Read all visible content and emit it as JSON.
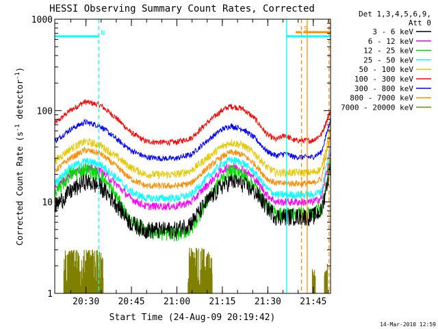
{
  "chart_data": {
    "type": "line",
    "title": "HESSI Observing Summary Count Rates, Corrected",
    "ylabel_main": "Corrected Count Rate (s",
    "ylabel_sup": "-1",
    "ylabel_mid": " detector",
    "ylabel_end": ")",
    "xlabel": "Start Time (24-Aug-09 20:19:42)",
    "footer_date": "14-Mar-2010 12:59",
    "y_scale": "log",
    "ylim": [
      1,
      1000
    ],
    "xlim_minutes": [
      0,
      91
    ],
    "x_ticks": [
      {
        "label": "20:30",
        "min": 10.3
      },
      {
        "label": "20:45",
        "min": 25.3
      },
      {
        "label": "21:00",
        "min": 40.3
      },
      {
        "label": "21:15",
        "min": 55.3
      },
      {
        "label": "21:30",
        "min": 70.3
      },
      {
        "label": "21:45",
        "min": 85.3
      }
    ],
    "y_ticks": [
      {
        "label": "1",
        "value": 1
      },
      {
        "label": "10",
        "value": 10
      },
      {
        "label": "100",
        "value": 100
      },
      {
        "label": "1000",
        "value": 1000
      }
    ],
    "legend": {
      "header_line1": "Det 1,3,4,5,6,9,",
      "header_line2": "Att 0",
      "placement": "right-outside",
      "entries": [
        {
          "label": "3 - 6 keV",
          "color": "#000000"
        },
        {
          "label": "6 - 12 keV",
          "color": "#ff00ff"
        },
        {
          "label": "12 - 25 keV",
          "color": "#00dd00"
        },
        {
          "label": "25 - 50 keV",
          "color": "#00ffff"
        },
        {
          "label": "50 - 100 keV",
          "color": "#e6c800"
        },
        {
          "label": "100 - 300 keV",
          "color": "#ff0000"
        },
        {
          "label": "300 - 800 keV",
          "color": "#0000ff"
        },
        {
          "label": "800 - 7000 keV",
          "color": "#ff8c00"
        },
        {
          "label": "7000 - 20000 keV",
          "color": "#808000"
        }
      ]
    },
    "series": [
      {
        "name": "3 - 6 keV",
        "color": "#000000",
        "noise": 0.22,
        "x": [
          0,
          5,
          10,
          15,
          20,
          25,
          30,
          35,
          40,
          45,
          50,
          55,
          58,
          62,
          66,
          70,
          73,
          76,
          79,
          82,
          85,
          88,
          91
        ],
        "y": [
          9,
          13,
          17,
          15,
          10,
          6,
          5,
          5,
          5,
          6,
          10,
          15,
          17,
          16,
          13,
          9,
          7,
          7,
          7,
          7,
          7,
          8,
          25
        ]
      },
      {
        "name": "6 - 12 keV",
        "color": "#ff00ff",
        "noise": 0.1,
        "x": [
          0,
          5,
          10,
          15,
          20,
          25,
          30,
          35,
          40,
          45,
          50,
          55,
          58,
          62,
          66,
          70,
          73,
          76,
          79,
          82,
          85,
          88,
          91
        ],
        "y": [
          14,
          20,
          24,
          22,
          16,
          11,
          9,
          9,
          9,
          10,
          15,
          22,
          25,
          23,
          18,
          12,
          10,
          10,
          10,
          10,
          10,
          11,
          35
        ]
      },
      {
        "name": "12 - 25 keV",
        "color": "#00dd00",
        "noise": 0.18,
        "x": [
          0,
          5,
          10,
          15,
          20,
          25,
          30,
          35,
          40,
          45,
          50,
          55,
          58,
          62,
          66,
          70,
          73,
          76,
          79,
          82,
          85,
          88,
          91
        ],
        "y": [
          12,
          20,
          23,
          20,
          12,
          6,
          5,
          4.5,
          4.5,
          5,
          10,
          18,
          22,
          20,
          15,
          9,
          7.5,
          7.5,
          7.5,
          7.5,
          7.5,
          8.5,
          30
        ]
      },
      {
        "name": "25 - 50 keV",
        "color": "#00ffff",
        "noise": 0.1,
        "x": [
          0,
          5,
          10,
          15,
          20,
          25,
          30,
          35,
          40,
          45,
          50,
          55,
          58,
          62,
          66,
          70,
          73,
          76,
          79,
          82,
          85,
          88,
          91
        ],
        "y": [
          16,
          24,
          28,
          26,
          19,
          13,
          11,
          11,
          11,
          12,
          18,
          26,
          29,
          27,
          21,
          14,
          12,
          12,
          12,
          12,
          12,
          13,
          42
        ]
      },
      {
        "name": "50 - 100 keV",
        "color": "#e6c800",
        "noise": 0.1,
        "x": [
          0,
          5,
          10,
          15,
          20,
          25,
          30,
          35,
          40,
          45,
          50,
          55,
          58,
          62,
          66,
          70,
          73,
          76,
          79,
          82,
          85,
          88,
          91
        ],
        "y": [
          28,
          38,
          46,
          42,
          32,
          24,
          20,
          20,
          20,
          22,
          30,
          40,
          45,
          42,
          34,
          24,
          21,
          21,
          21,
          21,
          21,
          23,
          65
        ]
      },
      {
        "name": "100 - 300 keV",
        "color": "#ff0000",
        "noise": 0.07,
        "x": [
          0,
          5,
          10,
          15,
          20,
          25,
          30,
          35,
          40,
          45,
          50,
          55,
          58,
          62,
          66,
          70,
          73,
          76,
          79,
          82,
          85,
          88,
          91
        ],
        "y": [
          72,
          100,
          125,
          115,
          85,
          58,
          46,
          45,
          45,
          50,
          72,
          100,
          112,
          105,
          82,
          55,
          48,
          54,
          47,
          47,
          47,
          55,
          100
        ]
      },
      {
        "name": "300 - 800 keV",
        "color": "#0000ff",
        "noise": 0.07,
        "x": [
          0,
          5,
          10,
          15,
          20,
          25,
          30,
          35,
          40,
          45,
          50,
          55,
          58,
          62,
          66,
          70,
          73,
          76,
          79,
          82,
          85,
          88,
          91
        ],
        "y": [
          46,
          62,
          75,
          68,
          50,
          37,
          31,
          30,
          30,
          33,
          46,
          62,
          68,
          63,
          50,
          36,
          32,
          34,
          31,
          31,
          31,
          35,
          80
        ]
      },
      {
        "name": "800 - 7000 keV",
        "color": "#ff8c00",
        "noise": 0.08,
        "x": [
          0,
          5,
          10,
          15,
          20,
          25,
          30,
          35,
          40,
          45,
          50,
          55,
          58,
          62,
          66,
          70,
          73,
          76,
          79,
          82,
          85,
          88,
          91
        ],
        "y": [
          22,
          30,
          37,
          34,
          25,
          18,
          15,
          15,
          15,
          16,
          23,
          31,
          35,
          33,
          26,
          18,
          16,
          16,
          16,
          16,
          16,
          18,
          55
        ]
      }
    ],
    "high_energy_bursts": {
      "name": "7000 - 20000 keV",
      "color": "#808000",
      "ranges": [
        [
          3,
          16,
          3
        ],
        [
          44,
          52,
          3.2
        ],
        [
          85,
          86,
          1.3
        ],
        [
          89,
          90,
          1.3
        ]
      ]
    },
    "flags": [
      {
        "label": "N",
        "color": "#00ffff",
        "bar_from": 0,
        "bar_to": 14.5,
        "value": 650
      },
      {
        "label": "S",
        "color": "#ff8c00",
        "bar_from": 79.5,
        "bar_to": 81.5,
        "value": 720
      },
      {
        "label": "",
        "color": "#00ffff",
        "bar_from": 76.5,
        "bar_to": 91,
        "value": 650
      },
      {
        "label": "",
        "color": "#ff8c00",
        "bar_from": 82,
        "bar_to": 91,
        "value": 720
      }
    ],
    "vlines": [
      {
        "min": 14.5,
        "color": "#00ffff",
        "style": "dashed"
      },
      {
        "min": 76.5,
        "color": "#00ffff",
        "style": "solid"
      },
      {
        "min": 81.4,
        "color": "#ff8c00",
        "style": "dashed"
      },
      {
        "min": 83.3,
        "color": "#ff8c00",
        "style": "solid"
      },
      {
        "min": 90.5,
        "color": "#ff8c00",
        "style": "dashed"
      }
    ]
  }
}
